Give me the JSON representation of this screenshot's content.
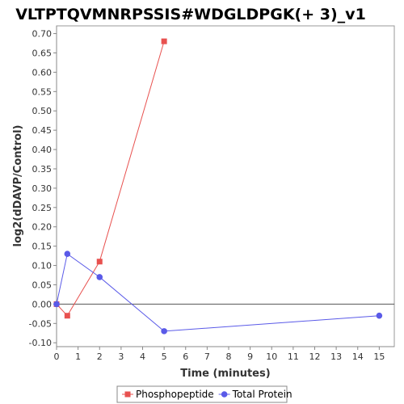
{
  "chart_data": {
    "type": "line",
    "title": "VLTPTQVMNRPSSIS#WDGLDPGK(+ 3)_v1",
    "xlabel": "Time (minutes)",
    "ylabel": "log2(dDAVP/Control)",
    "xlim": [
      0,
      15.7
    ],
    "ylim": [
      -0.11,
      0.72
    ],
    "x_ticks": [
      "0",
      "1",
      "2",
      "3",
      "4",
      "5",
      "6",
      "7",
      "8",
      "9",
      "10",
      "11",
      "12",
      "13",
      "14",
      "15"
    ],
    "y_ticks": [
      "-0.10",
      "-0.05",
      "0.00",
      "0.05",
      "0.10",
      "0.15",
      "0.20",
      "0.25",
      "0.30",
      "0.35",
      "0.40",
      "0.45",
      "0.50",
      "0.55",
      "0.60",
      "0.65",
      "0.70"
    ],
    "grid": false,
    "legend_position": "bottom",
    "series": [
      {
        "name": "Phosphopeptide",
        "color": "#e8514f",
        "marker": "square",
        "x": [
          0,
          0.5,
          2,
          5
        ],
        "y": [
          0.0,
          -0.03,
          0.11,
          0.68
        ]
      },
      {
        "name": "Total Protein",
        "color": "#5a5ae8",
        "marker": "circle",
        "x": [
          0,
          0.5,
          2,
          5,
          15
        ],
        "y": [
          0.0,
          0.13,
          0.07,
          -0.07,
          -0.03
        ]
      }
    ]
  }
}
